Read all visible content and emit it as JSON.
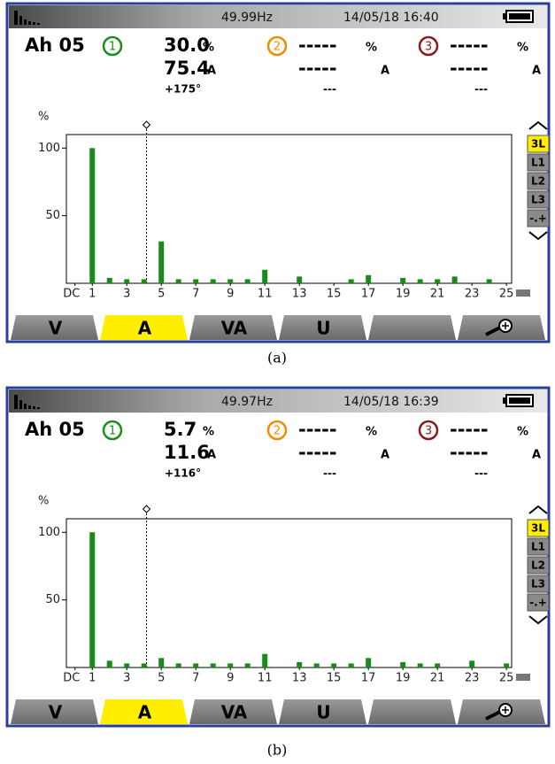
{
  "screens": [
    {
      "label": "(a)",
      "frequency": "49.99Hz",
      "datetime": "14/05/18 16:40",
      "mode": "Ah 05",
      "channels": [
        {
          "number": "1",
          "color": "#1a8f1a",
          "percent": "30.0",
          "percent_unit": "%",
          "current": "75.4",
          "current_unit": "A",
          "phase": "+175°"
        },
        {
          "number": "2",
          "color": "#f08c00",
          "percent": "-----",
          "percent_unit": "%",
          "current": "-----",
          "current_unit": "A",
          "phase": "---"
        },
        {
          "number": "3",
          "color": "#8b1a1a",
          "percent": "-----",
          "percent_unit": "%",
          "current": "-----",
          "current_unit": "A",
          "phase": "---"
        }
      ],
      "side_buttons": [
        "3L",
        "L1",
        "L2",
        "L3",
        "-.+"
      ],
      "tabs": [
        "V",
        "A",
        "VA",
        "U"
      ]
    },
    {
      "label": "(b)",
      "frequency": "49.97Hz",
      "datetime": "14/05/18 16:39",
      "mode": "Ah 05",
      "channels": [
        {
          "number": "1",
          "color": "#1a8f1a",
          "percent": "5.7",
          "percent_unit": "%",
          "current": "11.6",
          "current_unit": "A",
          "phase": "+116°"
        },
        {
          "number": "2",
          "color": "#f08c00",
          "percent": "-----",
          "percent_unit": "%",
          "current": "-----",
          "current_unit": "A",
          "phase": "---"
        },
        {
          "number": "3",
          "color": "#8b1a1a",
          "percent": "-----",
          "percent_unit": "%",
          "current": "-----",
          "current_unit": "A",
          "phase": "---"
        }
      ],
      "side_buttons": [
        "3L",
        "L1",
        "L2",
        "L3",
        "-.+"
      ],
      "tabs": [
        "V",
        "A",
        "VA",
        "U"
      ]
    }
  ],
  "chart_data": [
    {
      "type": "bar",
      "y_label": "%",
      "color": "#1a8a1a",
      "x": [
        1,
        2,
        3,
        4,
        5,
        6,
        7,
        8,
        9,
        10,
        11,
        13,
        16,
        17,
        19,
        20,
        21,
        22,
        24
      ],
      "values": [
        100,
        4,
        3,
        3,
        31,
        3,
        3,
        3,
        3,
        3,
        10,
        5,
        3,
        6,
        4,
        3,
        3,
        5,
        3
      ],
      "xlim": [
        -0.5,
        25.3
      ],
      "xticks": [
        {
          "value": 0,
          "label": "DC"
        },
        1,
        3,
        5,
        7,
        9,
        11,
        13,
        15,
        17,
        19,
        21,
        23,
        25
      ],
      "ylim": [
        0,
        110
      ],
      "yticks": [
        50,
        100
      ]
    },
    {
      "type": "bar",
      "y_label": "%",
      "color": "#1a8a1a",
      "x": [
        1,
        2,
        3,
        4,
        5,
        6,
        7,
        8,
        9,
        10,
        11,
        13,
        14,
        15,
        16,
        17,
        19,
        20,
        21,
        23,
        25
      ],
      "values": [
        100,
        5,
        3,
        3,
        7,
        3,
        3,
        3,
        3,
        3,
        10,
        4,
        3,
        3,
        3,
        7,
        4,
        3,
        3,
        5,
        3
      ],
      "xlim": [
        -0.5,
        25.3
      ],
      "xticks": [
        {
          "value": 0,
          "label": "DC"
        },
        1,
        3,
        5,
        7,
        9,
        11,
        13,
        15,
        17,
        19,
        21,
        23,
        25
      ],
      "ylim": [
        0,
        110
      ],
      "yticks": [
        50,
        100
      ]
    }
  ]
}
